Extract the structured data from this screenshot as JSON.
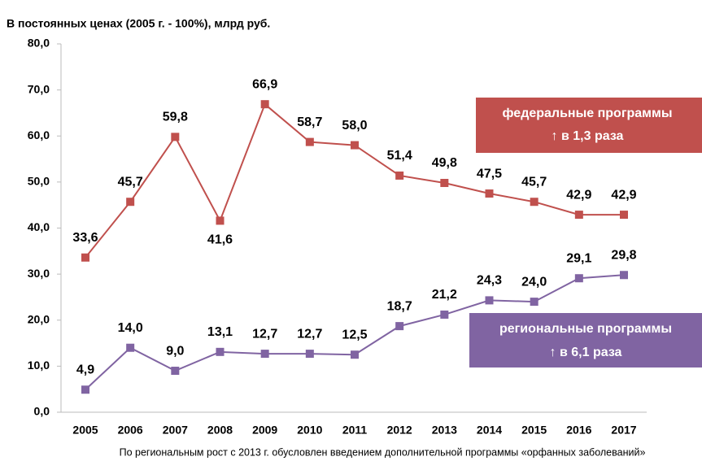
{
  "chart_data": {
    "type": "line",
    "title": "В постоянных ценах (2005 г. - 100%), млрд руб.",
    "categories": [
      "2005",
      "2006",
      "2007",
      "2008",
      "2009",
      "2010",
      "2011",
      "2012",
      "2013",
      "2014",
      "2015",
      "2016",
      "2017"
    ],
    "series": [
      {
        "name": "федеральные программы",
        "color": "#c0504d",
        "values": [
          33.6,
          45.7,
          59.8,
          41.6,
          66.9,
          58.7,
          58.0,
          51.4,
          49.8,
          47.5,
          45.7,
          42.9,
          42.9
        ],
        "value_labels": [
          "33,6",
          "45,7",
          "59,8",
          "41,6",
          "66,9",
          "58,7",
          "58,0",
          "51,4",
          "49,8",
          "47,5",
          "45,7",
          "42,9",
          "42,9"
        ]
      },
      {
        "name": "региональные программы",
        "color": "#8064a2",
        "values": [
          4.9,
          14.0,
          9.0,
          13.1,
          12.7,
          12.7,
          12.5,
          18.7,
          21.2,
          24.3,
          24.0,
          29.1,
          29.8
        ],
        "value_labels": [
          "4,9",
          "14,0",
          "9,0",
          "13,1",
          "12,7",
          "12,7",
          "12,5",
          "18,7",
          "21,2",
          "24,3",
          "24,0",
          "29,1",
          "29,8"
        ]
      }
    ],
    "annotations": [
      "↑ в 1,3 раза",
      "↑ в 6,1 раза"
    ],
    "footnote": "По региональным рост с 2013 г. обусловлен введением дополнительной программы «орфанных заболеваний»",
    "ylim": [
      0,
      80
    ],
    "yticks": [
      {
        "value": 0,
        "label": "0,0"
      },
      {
        "value": 10,
        "label": "10,0"
      },
      {
        "value": 20,
        "label": "20,0"
      },
      {
        "value": 30,
        "label": "30,0"
      },
      {
        "value": 40,
        "label": "40,0"
      },
      {
        "value": 50,
        "label": "50,0"
      },
      {
        "value": 60,
        "label": "60,0"
      },
      {
        "value": 70,
        "label": "70,0"
      },
      {
        "value": 80,
        "label": "80,0"
      }
    ],
    "grid": false
  }
}
